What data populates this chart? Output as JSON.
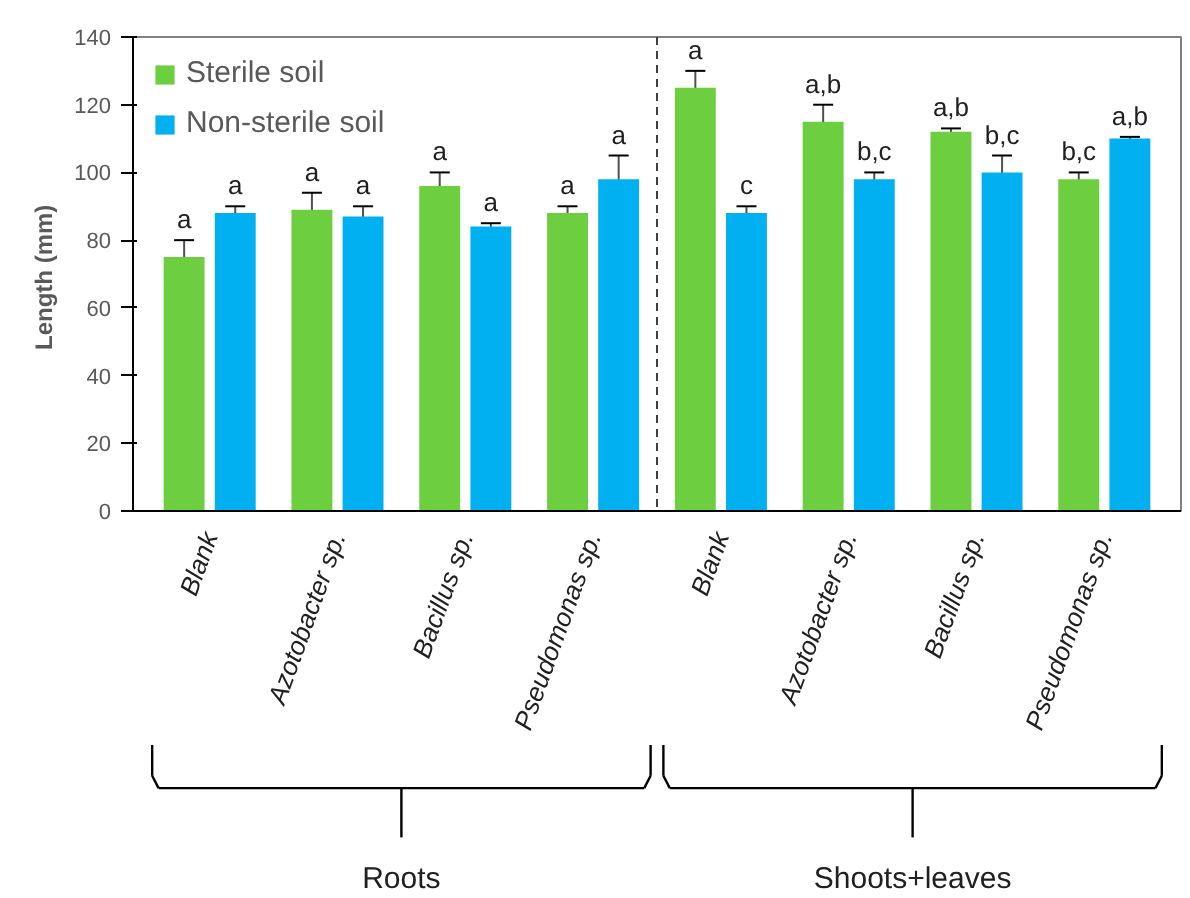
{
  "chart_data": {
    "type": "bar",
    "ylabel": "Length  (mm)",
    "categories": [
      "Blank",
      "Azotobacter sp.",
      "Bacillus sp.",
      "Pseudomonas sp.",
      "Blank",
      "Azotobacter sp.",
      "Bacillus sp.",
      "Pseudomonas sp."
    ],
    "series": [
      {
        "name": "Sterile soil",
        "color": "#6dcf3f",
        "values": [
          75,
          89,
          96,
          88,
          125,
          115,
          112,
          98
        ],
        "errors": [
          5,
          5,
          4,
          2,
          5,
          5,
          1,
          2
        ],
        "value_labels": [
          "a",
          "a",
          "a",
          "a",
          "a",
          "a,b",
          "a,b",
          "b,c"
        ]
      },
      {
        "name": "Non-sterile soil",
        "color": "#00b0f0",
        "values": [
          88,
          87,
          84,
          98,
          88,
          98,
          100,
          110
        ],
        "errors": [
          2,
          3,
          1,
          7,
          2,
          2,
          5,
          0.5
        ],
        "value_labels": [
          "a",
          "a",
          "a",
          "a",
          "c",
          "b,c",
          "b,c",
          "a,b"
        ]
      }
    ],
    "ylim": [
      0,
      140
    ],
    "yticks": [
      0,
      20,
      40,
      60,
      80,
      100,
      120,
      140
    ],
    "annotations": [
      "Roots",
      "Shoots+leaves"
    ],
    "legend": "top left",
    "grid": false
  }
}
